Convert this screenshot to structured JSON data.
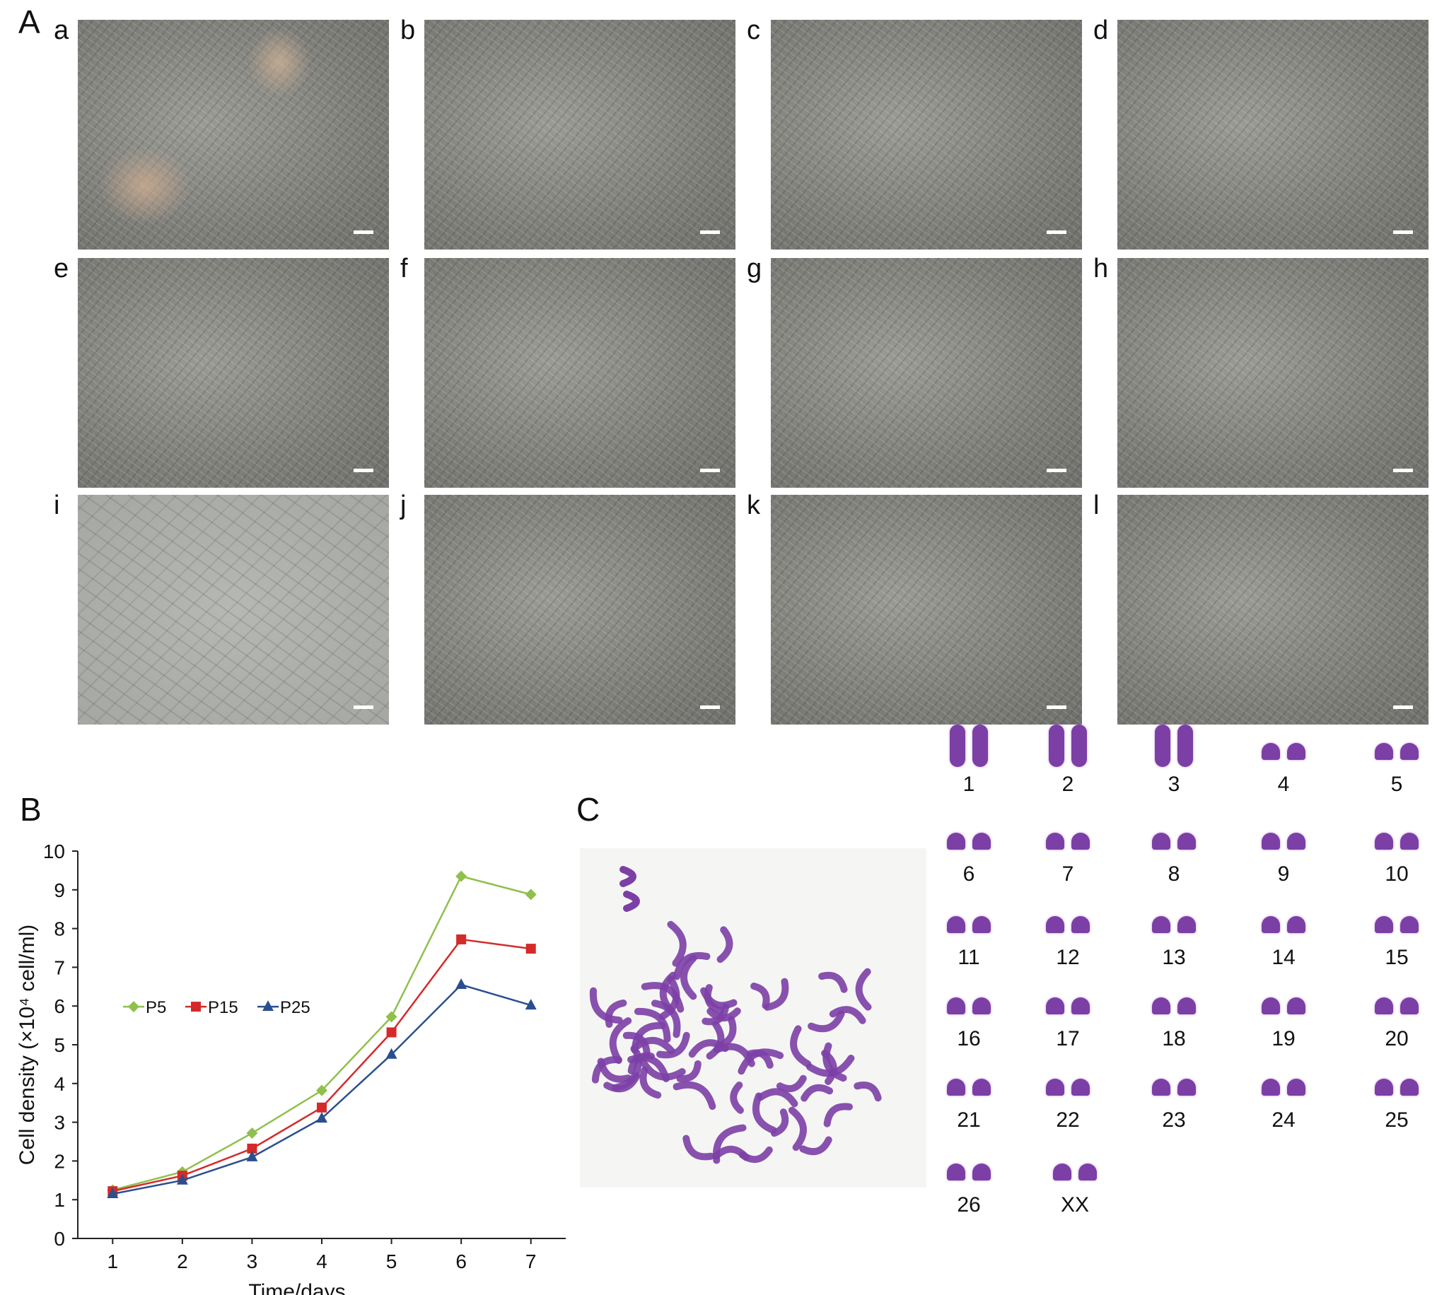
{
  "panel_labels": {
    "A": "A",
    "B": "B",
    "C": "C"
  },
  "micrographs": [
    {
      "label": "a",
      "style": "colony"
    },
    {
      "label": "b",
      "style": "dense"
    },
    {
      "label": "c",
      "style": "dense"
    },
    {
      "label": "d",
      "style": "dense"
    },
    {
      "label": "e",
      "style": "dense"
    },
    {
      "label": "f",
      "style": "dense"
    },
    {
      "label": "g",
      "style": "dense"
    },
    {
      "label": "h",
      "style": "dense"
    },
    {
      "label": "i",
      "style": "sparse"
    },
    {
      "label": "j",
      "style": "dense"
    },
    {
      "label": "k",
      "style": "dense"
    },
    {
      "label": "l",
      "style": "dense"
    }
  ],
  "chart_data": {
    "type": "line",
    "xlabel": "Time/days",
    "ylabel": "Cell density (×10⁴ cell/ml)",
    "x": [
      1,
      2,
      3,
      4,
      5,
      6,
      7
    ],
    "xlim": [
      0.5,
      7.5
    ],
    "ylim": [
      0,
      10
    ],
    "yticks": [
      0,
      1,
      2,
      3,
      4,
      5,
      6,
      7,
      8,
      9,
      10
    ],
    "xticks": [
      1,
      2,
      3,
      4,
      5,
      6,
      7
    ],
    "legend_position": "middle-left",
    "series": [
      {
        "name": "P5",
        "color": "#8fc04c",
        "marker": "diamond",
        "values": [
          1.25,
          1.72,
          2.72,
          3.82,
          5.72,
          9.35,
          8.88
        ]
      },
      {
        "name": "P15",
        "color": "#d42a2a",
        "marker": "square",
        "values": [
          1.22,
          1.62,
          2.32,
          3.38,
          5.32,
          7.72,
          7.48
        ]
      },
      {
        "name": "P25",
        "color": "#2a4f8f",
        "marker": "triangle",
        "values": [
          1.15,
          1.5,
          2.1,
          3.1,
          4.75,
          6.55,
          6.02
        ]
      }
    ]
  },
  "karyotype": {
    "chromosome_color": "#7c3fa6",
    "pairs": [
      "1",
      "2",
      "3",
      "4",
      "5",
      "6",
      "7",
      "8",
      "9",
      "10",
      "11",
      "12",
      "13",
      "14",
      "15",
      "16",
      "17",
      "18",
      "19",
      "20",
      "21",
      "22",
      "23",
      "24",
      "25",
      "26",
      "XX"
    ]
  }
}
